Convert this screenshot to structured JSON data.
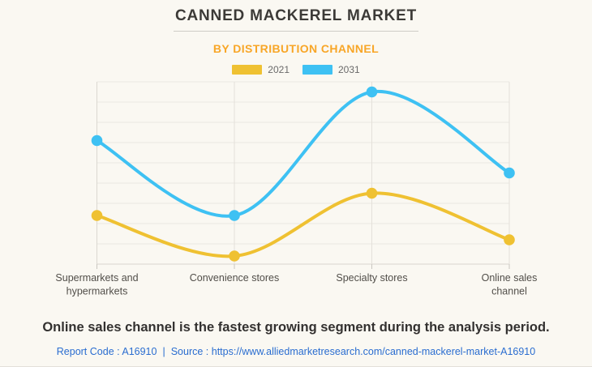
{
  "header": {
    "title": "CANNED MACKEREL MARKET",
    "subtitle": "BY DISTRIBUTION CHANNEL",
    "subtitle_color": "#f8a627"
  },
  "legend": {
    "items": [
      {
        "label": "2021",
        "color": "#efc132"
      },
      {
        "label": "2031",
        "color": "#3ec1f3"
      }
    ]
  },
  "chart_data": {
    "type": "line",
    "title": "Canned Mackerel Market by Distribution Channel",
    "categories": [
      "Supermarkets and hypermarkets",
      "Convenience stores",
      "Specialty stores",
      "Online sales channel"
    ],
    "category_label_lines": [
      [
        "Supermarkets and",
        "hypermarkets"
      ],
      [
        "Convenience stores"
      ],
      [
        "Specialty stores"
      ],
      [
        "Online sales",
        "channel"
      ]
    ],
    "series": [
      {
        "name": "2021",
        "color": "#efc132",
        "values": [
          2.4,
          0.4,
          3.5,
          1.2
        ]
      },
      {
        "name": "2031",
        "color": "#3ec1f3",
        "values": [
          6.1,
          2.4,
          8.5,
          4.5
        ]
      }
    ],
    "xlabel": "",
    "ylabel": "",
    "ylim": [
      0,
      9
    ],
    "grid": true,
    "legend_position": "top",
    "line_style": "smooth-spline",
    "markers": "filled-circle"
  },
  "footer": {
    "headline": "Online sales channel is the fastest growing segment during the analysis period.",
    "report_code": "Report Code : A16910",
    "separator": "|",
    "source": "Source : https://www.alliedmarketresearch.com/canned-mackerel-market-A16910",
    "link_color": "#2a6dd0"
  }
}
